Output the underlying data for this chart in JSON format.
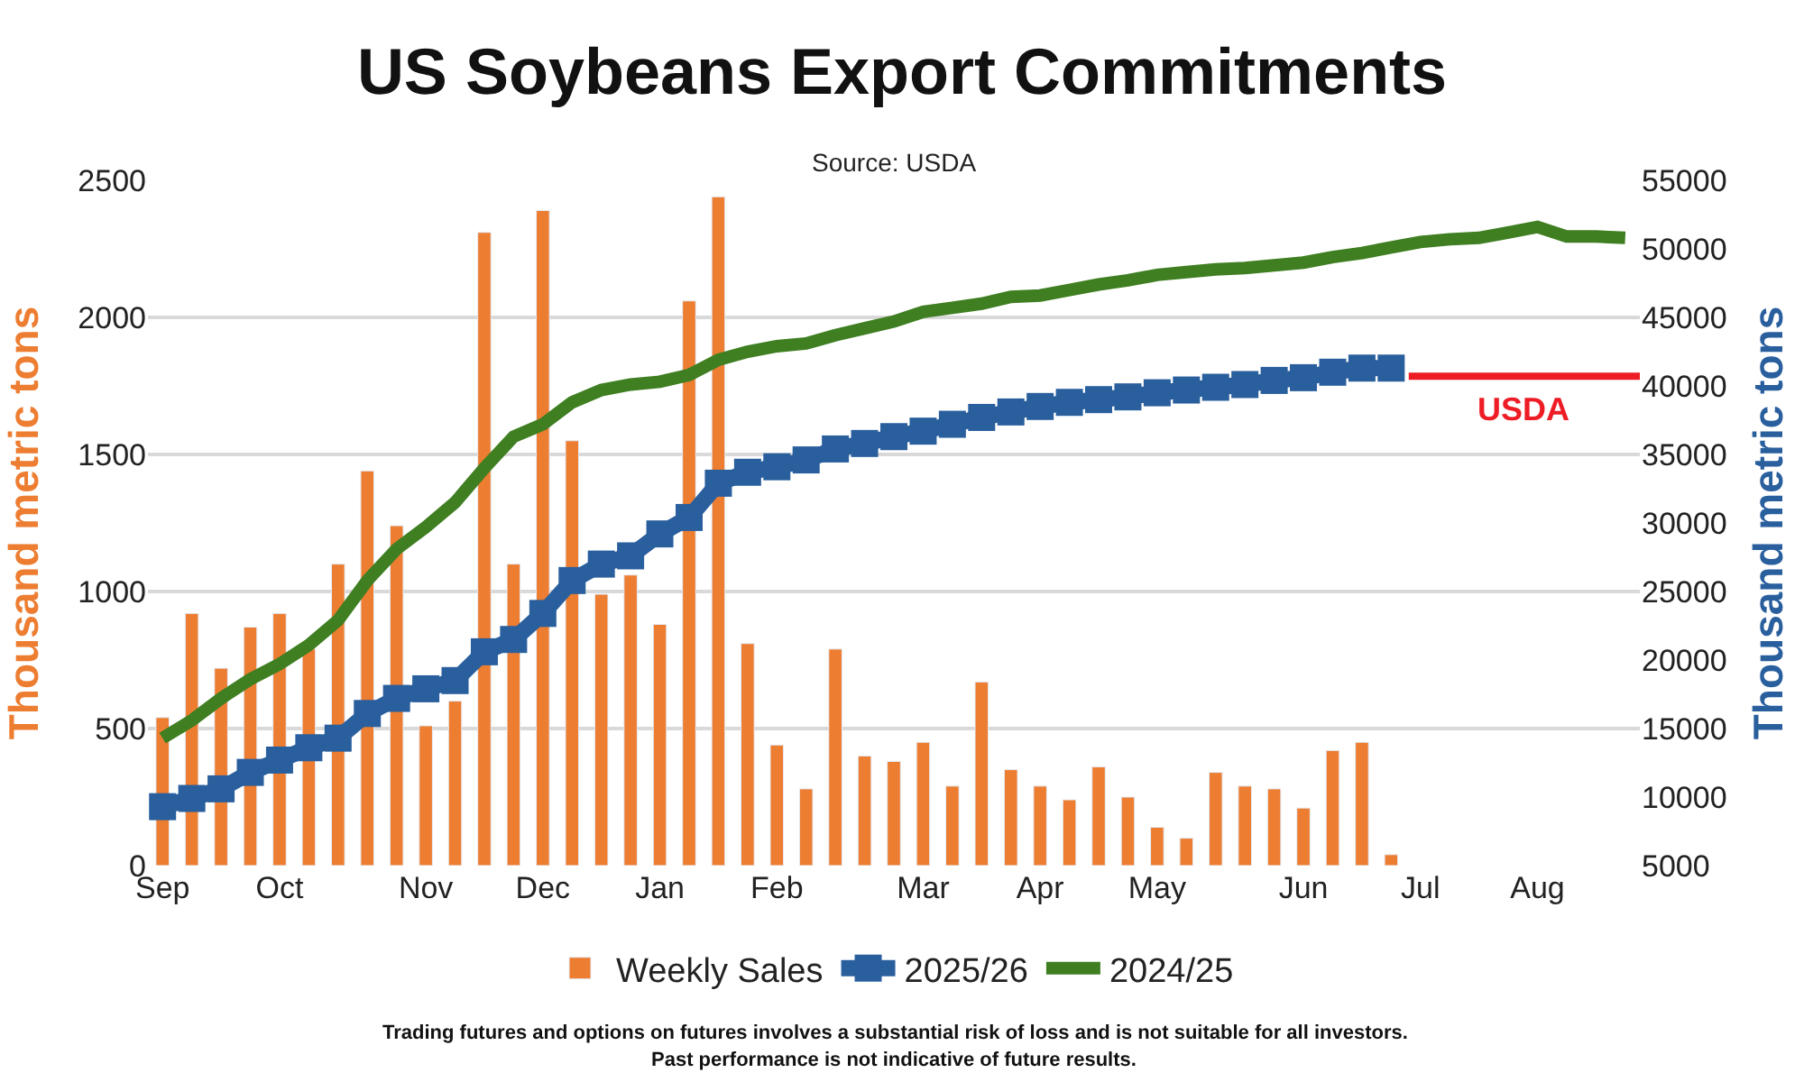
{
  "chart_data": {
    "type": "bar",
    "title": "US Soybeans Export Commitments",
    "subtitle": "Source: USDA",
    "ylabel": "Thousand metric tons",
    "y2label": "Thousand metric tons",
    "categories": [
      "Sep",
      null,
      null,
      null,
      "Oct",
      null,
      null,
      null,
      null,
      "Nov",
      null,
      null,
      null,
      "Dec",
      null,
      null,
      null,
      "Jan",
      null,
      null,
      null,
      "Feb",
      null,
      null,
      null,
      null,
      "Mar",
      null,
      null,
      null,
      "Apr",
      null,
      null,
      null,
      "May",
      null,
      null,
      null,
      null,
      "Jun",
      null,
      null,
      null,
      "Jul",
      null,
      null,
      null,
      "Aug",
      null,
      null,
      null
    ],
    "series": [
      {
        "name": "Weekly Sales",
        "color": "#ed7d31",
        "values": [
          540,
          920,
          720,
          870,
          920,
          790,
          1100,
          1440,
          1240,
          510,
          600,
          2310,
          1100,
          2390,
          1550,
          990,
          1060,
          880,
          2060,
          2440,
          810,
          440,
          280,
          790,
          400,
          380,
          450,
          290,
          670,
          350,
          290,
          240,
          360,
          250,
          140,
          100,
          340,
          290,
          280,
          210,
          420,
          450,
          40,
          null,
          null,
          null,
          null,
          null,
          null,
          null,
          null
        ]
      },
      {
        "name": "2025/26",
        "type": "line",
        "axis": "y2",
        "marker": "square",
        "color": "#2a5f9e",
        "values": [
          9300,
          9900,
          10600,
          11800,
          12700,
          13600,
          14300,
          16100,
          17200,
          17900,
          18500,
          20600,
          21500,
          23400,
          25800,
          27000,
          27600,
          29200,
          30400,
          32900,
          33700,
          34100,
          34600,
          35400,
          35800,
          36300,
          36700,
          37200,
          37700,
          38100,
          38500,
          38800,
          39000,
          39200,
          39500,
          39700,
          39900,
          40100,
          40400,
          40600,
          41000,
          41300,
          41300,
          null,
          null,
          null,
          null,
          null,
          null,
          null,
          null
        ]
      },
      {
        "name": "2024/25",
        "type": "line",
        "axis": "y2",
        "marker": "none",
        "color": "#3f7f22",
        "values": [
          14300,
          15600,
          17200,
          18600,
          19700,
          21100,
          22900,
          25800,
          28100,
          29700,
          31500,
          34000,
          36300,
          37200,
          38800,
          39700,
          40100,
          40300,
          40800,
          41900,
          42500,
          42900,
          43100,
          43700,
          44200,
          44700,
          45400,
          45700,
          46000,
          46500,
          46600,
          47000,
          47400,
          47700,
          48100,
          48300,
          48500,
          48600,
          48800,
          49000,
          49400,
          49700,
          50100,
          50500,
          50700,
          50800,
          51200,
          51600,
          50900,
          50900,
          50800
        ]
      }
    ],
    "ylim": [
      0,
      2500
    ],
    "yticks": [
      0,
      500,
      1000,
      1500,
      2000,
      2500
    ],
    "y2lim": [
      5000,
      55000
    ],
    "y2ticks": [
      5000,
      10000,
      15000,
      20000,
      25000,
      30000,
      35000,
      40000,
      45000,
      50000,
      55000
    ],
    "ref_lines": [
      {
        "axis": "y2",
        "value": 40700,
        "label": "USDA",
        "color": "#ee1c25"
      }
    ],
    "grid": "y",
    "legend": "bottom",
    "annotations": [
      "Trading futures and options on futures involves a substantial risk of loss and is not suitable for all investors.",
      "Past performance is not indicative of future results."
    ]
  }
}
